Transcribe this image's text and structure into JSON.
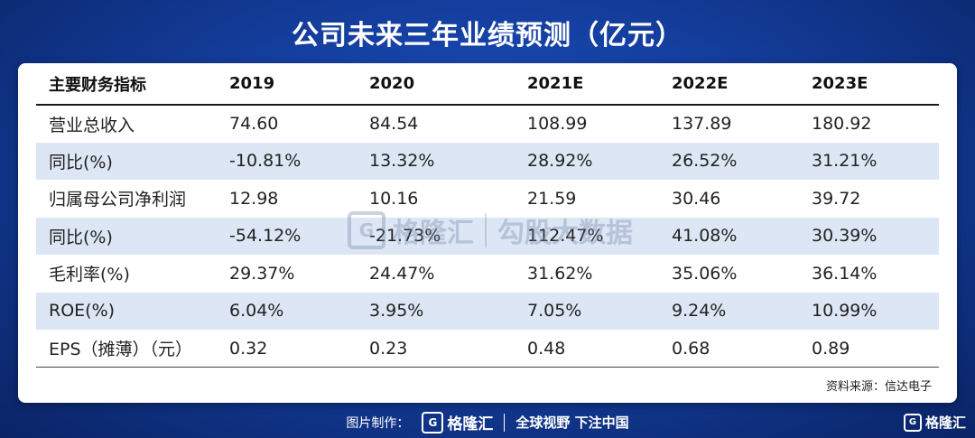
{
  "title": "公司未来三年业绩预测（亿元）",
  "table": {
    "headers": [
      "主要财务指标",
      "2019",
      "2020",
      "2021E",
      "2022E",
      "2023E"
    ],
    "rows": [
      [
        "营业总收入",
        "74.60",
        "84.54",
        "108.99",
        "137.89",
        "180.92"
      ],
      [
        "同比(%)",
        "-10.81%",
        "13.32%",
        "28.92%",
        "26.52%",
        "31.21%"
      ],
      [
        "归属母公司净利润",
        "12.98",
        "10.16",
        "21.59",
        "30.46",
        "39.72"
      ],
      [
        "同比(%)",
        "-54.12%",
        "-21.73%",
        "112.47%",
        "41.08%",
        "30.39%"
      ],
      [
        "毛利率(%)",
        "29.37%",
        "24.47%",
        "31.62%",
        "35.06%",
        "36.14%"
      ],
      [
        "ROE(%)",
        "6.04%",
        "3.95%",
        "7.05%",
        "9.24%",
        "10.99%"
      ],
      [
        "EPS（摊薄）（元）",
        "0.32",
        "0.23",
        "0.48",
        "0.68",
        "0.89"
      ]
    ]
  },
  "source": "资料来源：信达电子",
  "watermark": {
    "brand": "格隆汇",
    "product": "勾股大数据",
    "icon": "G"
  },
  "footer": {
    "made_by": "图片制作：",
    "logo_icon": "G",
    "logo_text": "格隆汇",
    "slogan": "全球视野 下注中国"
  },
  "corner_logo": {
    "icon": "G",
    "text": "格隆汇"
  }
}
